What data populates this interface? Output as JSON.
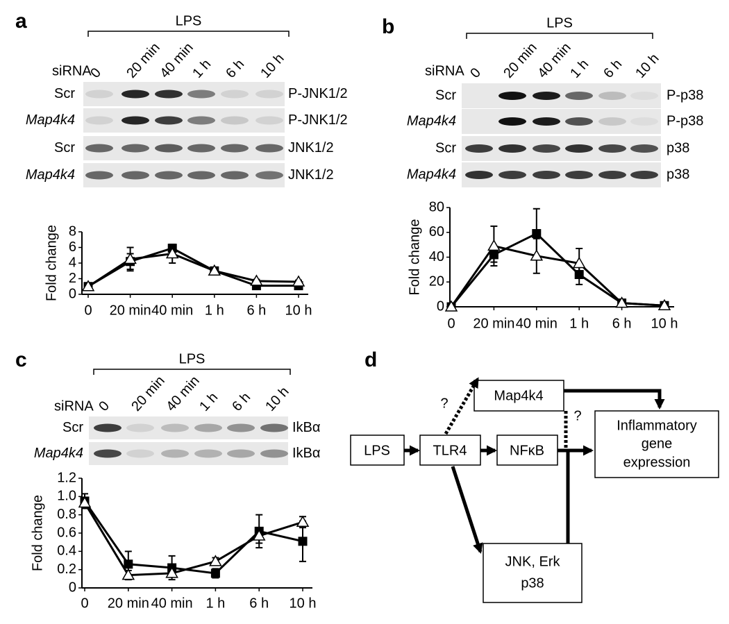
{
  "panel_labels": [
    "a",
    "b",
    "c",
    "d"
  ],
  "blots": [
    {
      "treatment": "LPS",
      "sirna_label": "siRNA",
      "lanes": [
        "0",
        "20 min",
        "40 min",
        "1 h",
        "6 h",
        "10 h"
      ],
      "rows": [
        {
          "sirna": "Scr",
          "protein": "P-JNK1/2",
          "bands": [
            0.1,
            0.9,
            0.85,
            0.5,
            0.1,
            0.1
          ]
        },
        {
          "sirna": "Map4k4",
          "protein": "P-JNK1/2",
          "bands": [
            0.1,
            0.9,
            0.8,
            0.5,
            0.15,
            0.1
          ]
        },
        {
          "sirna": "Scr",
          "protein": "JNK1/2",
          "bands": [
            0.6,
            0.6,
            0.65,
            0.6,
            0.6,
            0.6
          ]
        },
        {
          "sirna": "Map4k4",
          "protein": "JNK1/2",
          "bands": [
            0.6,
            0.6,
            0.6,
            0.6,
            0.6,
            0.55
          ]
        }
      ]
    },
    {
      "treatment": "LPS",
      "sirna_label": "siRNA",
      "lanes": [
        "0",
        "20 min",
        "40 min",
        "1 h",
        "6 h",
        "10 h"
      ],
      "rows": [
        {
          "sirna": "Scr",
          "protein": "P-p38",
          "bands": [
            0,
            1,
            0.95,
            0.6,
            0.2,
            0.05
          ]
        },
        {
          "sirna": "Map4k4",
          "protein": "P-p38",
          "bands": [
            0,
            1,
            0.95,
            0.7,
            0.15,
            0.05
          ]
        },
        {
          "sirna": "Scr",
          "protein": "p38",
          "bands": [
            0.8,
            0.85,
            0.75,
            0.85,
            0.75,
            0.7
          ]
        },
        {
          "sirna": "Map4k4",
          "protein": "p38",
          "bands": [
            0.85,
            0.8,
            0.8,
            0.8,
            0.8,
            0.8
          ]
        }
      ]
    },
    {
      "treatment": "LPS",
      "sirna_label": "siRNA",
      "lanes": [
        "0",
        "20 min",
        "40 min",
        "1 h",
        "6 h",
        "10 h"
      ],
      "rows": [
        {
          "sirna": "Scr",
          "protein": "IkBα",
          "bands": [
            0.8,
            0.1,
            0.2,
            0.3,
            0.4,
            0.55
          ]
        },
        {
          "sirna": "Map4k4",
          "protein": "IkBα",
          "bands": [
            0.75,
            0.1,
            0.25,
            0.25,
            0.3,
            0.4
          ]
        }
      ]
    }
  ],
  "chart_data": [
    {
      "type": "line",
      "ylabel": "Fold change",
      "categories": [
        "0",
        "20 min",
        "40 min",
        "1 h",
        "6 h",
        "10 h"
      ],
      "ylim": [
        0,
        8
      ],
      "yticks": [
        0,
        2,
        4,
        6,
        8
      ],
      "series": [
        {
          "color": "#000000",
          "fill": "#000000",
          "marker": "square",
          "values": [
            1,
            4.2,
            5.9,
            3,
            1.1,
            1.1
          ],
          "errors": [
            0.3,
            1,
            0.3,
            0.3,
            0.2,
            0.2
          ]
        },
        {
          "color": "#000000",
          "fill": "#ffffff",
          "marker": "triangle",
          "values": [
            1,
            4.5,
            5.2,
            3,
            1.7,
            1.6
          ],
          "errors": [
            0.2,
            1.5,
            1.2,
            0.2,
            0.2,
            0.2
          ]
        }
      ]
    },
    {
      "type": "line",
      "ylabel": "Fold change",
      "categories": [
        "0",
        "20 min",
        "40 min",
        "1 h",
        "6 h",
        "10 h"
      ],
      "ylim": [
        0,
        80
      ],
      "yticks": [
        0,
        20,
        40,
        60,
        80
      ],
      "series": [
        {
          "color": "#000000",
          "fill": "#000000",
          "marker": "square",
          "values": [
            0,
            42,
            59,
            26,
            3,
            1
          ],
          "errors": [
            0,
            6,
            20,
            8,
            3,
            1
          ]
        },
        {
          "color": "#000000",
          "fill": "#ffffff",
          "marker": "triangle",
          "values": [
            0,
            49,
            41,
            35,
            3,
            1
          ],
          "errors": [
            0,
            16,
            14,
            12,
            2,
            1
          ]
        }
      ]
    },
    {
      "type": "line",
      "ylabel": "Fold change",
      "categories": [
        "0",
        "20 min",
        "40 min",
        "1 h",
        "6 h",
        "10 h"
      ],
      "ylim": [
        0,
        1.2
      ],
      "yticks": [
        0,
        0.2,
        0.4,
        0.6,
        0.8,
        {
          "value": 1,
          "label": "1.0"
        },
        1.2
      ],
      "series": [
        {
          "color": "#000000",
          "fill": "#000000",
          "marker": "square",
          "values": [
            0.95,
            0.26,
            0.22,
            0.16,
            0.62,
            0.51
          ],
          "errors": [
            0.08,
            0.14,
            0.13,
            0.05,
            0.18,
            0.22
          ]
        },
        {
          "color": "#000000",
          "fill": "#ffffff",
          "marker": "triangle",
          "values": [
            0.93,
            0.14,
            0.16,
            0.29,
            0.57,
            0.72
          ],
          "errors": [
            0.05,
            0.05,
            0.04,
            0.04,
            0.08,
            0.06
          ]
        }
      ]
    }
  ],
  "diagram": {
    "nodes": [
      {
        "lines": [
          "Map4k4"
        ]
      },
      {
        "lines": [
          "LPS"
        ]
      },
      {
        "lines": [
          "TLR4"
        ]
      },
      {
        "lines": [
          "NFκB"
        ]
      },
      {
        "lines": [
          "Inflammatory",
          "gene",
          "expression"
        ]
      },
      {
        "lines": [
          "JNK, Erk",
          "p38"
        ]
      }
    ],
    "edge_labels": [
      "?",
      "?"
    ]
  }
}
